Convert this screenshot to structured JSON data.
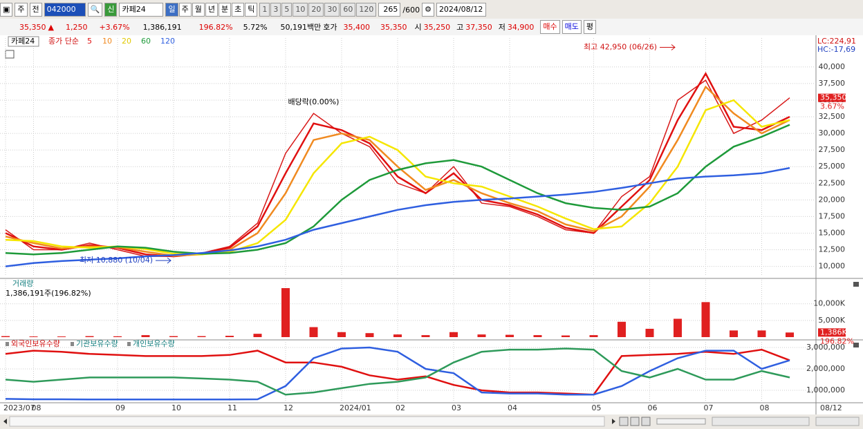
{
  "toolbar": {
    "mode": "주",
    "prev": "전",
    "code": "042000",
    "market": "신",
    "name": "카페24",
    "periods": [
      "일",
      "주",
      "월",
      "년",
      "분",
      "초",
      "틱"
    ],
    "intervals": [
      "1",
      "3",
      "5",
      "10",
      "20",
      "30",
      "60",
      "120"
    ],
    "count": "265",
    "max": "/600",
    "date": "2024/08/12"
  },
  "quote": {
    "price": "35,350",
    "arrow": "▲",
    "change": "1,250",
    "rate": "+3.67%",
    "volume": "1,386,191",
    "vol_ratio": "196.82%",
    "turnover": "5.72%",
    "amount": "50,191백만",
    "ask_label": "호가",
    "ask": "35,400",
    "bid": "35,350",
    "open_label": "시",
    "open": "35,250",
    "high_label": "고",
    "high": "37,350",
    "low_label": "저",
    "low": "34,900",
    "buy": "매수",
    "sell": "매도",
    "avg": "평"
  },
  "chart_data": [
    {
      "type": "line",
      "symbol": "카페24",
      "legend_prefix": "종가 단순",
      "categories": [
        "2023/07",
        "08",
        null,
        null,
        "09",
        null,
        "10",
        null,
        "11",
        null,
        "12",
        null,
        "2024/01",
        null,
        "02",
        null,
        "03",
        null,
        "04",
        null,
        null,
        "05",
        null,
        "06",
        null,
        "07",
        null,
        "08",
        null
      ],
      "x_end_label": "08/12",
      "close": {
        "color": "#d81818",
        "values": [
          15500,
          12500,
          12500,
          13500,
          12500,
          11500,
          11500,
          12000,
          13000,
          16500,
          27000,
          33000,
          30000,
          28000,
          22500,
          21000,
          25000,
          19500,
          19000,
          17500,
          15500,
          15000,
          20500,
          23500,
          35000,
          38000,
          30000,
          32000,
          35350
        ]
      },
      "series": [
        {
          "name": "5",
          "color": "#e01010",
          "values": [
            15000,
            13000,
            12500,
            13200,
            12800,
            11800,
            11500,
            11900,
            12800,
            16000,
            24000,
            31500,
            30500,
            28500,
            23500,
            21000,
            24000,
            20000,
            19200,
            17800,
            15800,
            15000,
            19000,
            23000,
            32000,
            39000,
            31000,
            30500,
            32500
          ]
        },
        {
          "name": "10",
          "color": "#f08a20",
          "values": [
            14500,
            13500,
            12700,
            13000,
            12900,
            12200,
            11600,
            11800,
            12500,
            15000,
            21000,
            29000,
            30000,
            29000,
            25000,
            21500,
            23000,
            21000,
            19500,
            18300,
            16300,
            15300,
            17500,
            22000,
            29000,
            37000,
            33000,
            30000,
            32000
          ]
        },
        {
          "name": "20",
          "color": "#f5e600",
          "values": [
            14000,
            13800,
            13000,
            12800,
            13000,
            12600,
            11900,
            11800,
            12200,
            13500,
            17000,
            24000,
            28500,
            29500,
            27500,
            23500,
            22500,
            22000,
            20500,
            19000,
            17200,
            15600,
            16000,
            19500,
            25000,
            33500,
            35000,
            31000,
            32000
          ]
        },
        {
          "name": "60",
          "color": "#1e9a3a",
          "values": [
            12000,
            11800,
            12000,
            12500,
            13000,
            12800,
            12200,
            11900,
            12000,
            12500,
            13500,
            16000,
            20000,
            23000,
            24500,
            25500,
            26000,
            25000,
            23000,
            21000,
            19500,
            18800,
            18500,
            19000,
            21000,
            25000,
            28000,
            29500,
            31300
          ]
        },
        {
          "name": "120",
          "color": "#2f5fe0",
          "values": [
            10000,
            10500,
            10800,
            11000,
            11200,
            11500,
            11700,
            12000,
            12400,
            13000,
            14000,
            15500,
            16500,
            17500,
            18500,
            19200,
            19700,
            20000,
            20200,
            20500,
            20800,
            21200,
            21800,
            22500,
            23200,
            23500,
            23700,
            24000,
            24800
          ]
        }
      ],
      "ylim": [
        8500,
        44350
      ],
      "yticks": [
        {
          "value": 10000,
          "label": "10,000"
        },
        {
          "value": 12500,
          "label": "12,500"
        },
        {
          "value": 15000,
          "label": "15,000"
        },
        {
          "value": 17500,
          "label": "17,500"
        },
        {
          "value": 20000,
          "label": "20,000"
        },
        {
          "value": 22500,
          "label": "22,500"
        },
        {
          "value": 25000,
          "label": "25,000"
        },
        {
          "value": 27500,
          "label": "27,500"
        },
        {
          "value": 30000,
          "label": "30,000"
        },
        {
          "value": 32500,
          "label": "32,500"
        },
        {
          "value": 35000,
          "label": "35,000"
        },
        {
          "value": 37500,
          "label": "37,500"
        },
        {
          "value": 40000,
          "label": "40,000"
        }
      ],
      "grid": true,
      "annotations": [
        {
          "text": "최고 42,950 (06/26)",
          "index": 24,
          "value": 42950
        },
        {
          "text": "최저 10,880 (10/04)",
          "index": 6,
          "value": 10880
        },
        {
          "text": "배당락(0.00%)",
          "index": 11
        }
      ],
      "lc_label": "LC:224,91",
      "hc_label": "HC:-17,69",
      "current": {
        "value": 35350,
        "label": "35,350",
        "rate": "3.67%"
      }
    },
    {
      "type": "bar",
      "title": "거래량",
      "subtitle": "1,386,191주(196.82%)",
      "color": "#e02020",
      "values": [
        300,
        200,
        200,
        300,
        250,
        600,
        300,
        300,
        400,
        1000,
        14700,
        3000,
        1500,
        1200,
        800,
        600,
        1500,
        800,
        700,
        600,
        500,
        600,
        4600,
        2500,
        5500,
        10500,
        2000,
        2000,
        1386
      ],
      "ylim": [
        0,
        17200
      ],
      "yticks": [
        {
          "value": 5000,
          "label": "5,000K"
        },
        {
          "value": 10000,
          "label": "10,000K"
        }
      ],
      "grid": true,
      "current": {
        "value": 1386,
        "label": "1,386K",
        "rate": "196.82%"
      }
    },
    {
      "type": "line",
      "series": [
        {
          "name": "외국인보유수량",
          "color": "#e01010",
          "values": [
            2700000,
            2850000,
            2800000,
            2700000,
            2650000,
            2600000,
            2600000,
            2600000,
            2650000,
            2850000,
            2300000,
            2300000,
            2100000,
            1700000,
            1500000,
            1650000,
            1250000,
            1000000,
            900000,
            900000,
            850000,
            800000,
            2600000,
            2650000,
            2700000,
            2800000,
            2700000,
            2900000,
            2400000
          ]
        },
        {
          "name": "기관보유수량",
          "color": "#2f5fe0",
          "values": [
            600000,
            580000,
            580000,
            570000,
            570000,
            570000,
            570000,
            570000,
            570000,
            580000,
            1200000,
            2500000,
            2950000,
            3000000,
            2800000,
            2000000,
            1800000,
            900000,
            850000,
            850000,
            800000,
            800000,
            1200000,
            1900000,
            2500000,
            2850000,
            2850000,
            2000000,
            2400000
          ]
        },
        {
          "name": "개인보유수량",
          "color": "#2e9a5a",
          "values": [
            1500000,
            1400000,
            1500000,
            1600000,
            1600000,
            1600000,
            1600000,
            1550000,
            1500000,
            1400000,
            800000,
            900000,
            1100000,
            1300000,
            1400000,
            1600000,
            2300000,
            2800000,
            2900000,
            2900000,
            2950000,
            2900000,
            1900000,
            1600000,
            2000000,
            1500000,
            1500000,
            1900000,
            1600000
          ]
        }
      ],
      "ylim": [
        516000,
        3258000
      ],
      "yticks": [
        {
          "value": 1000000,
          "label": "1,000,000"
        },
        {
          "value": 2000000,
          "label": "2,000,000"
        },
        {
          "value": 3000000,
          "label": "3,000,000"
        }
      ],
      "grid": true
    }
  ]
}
